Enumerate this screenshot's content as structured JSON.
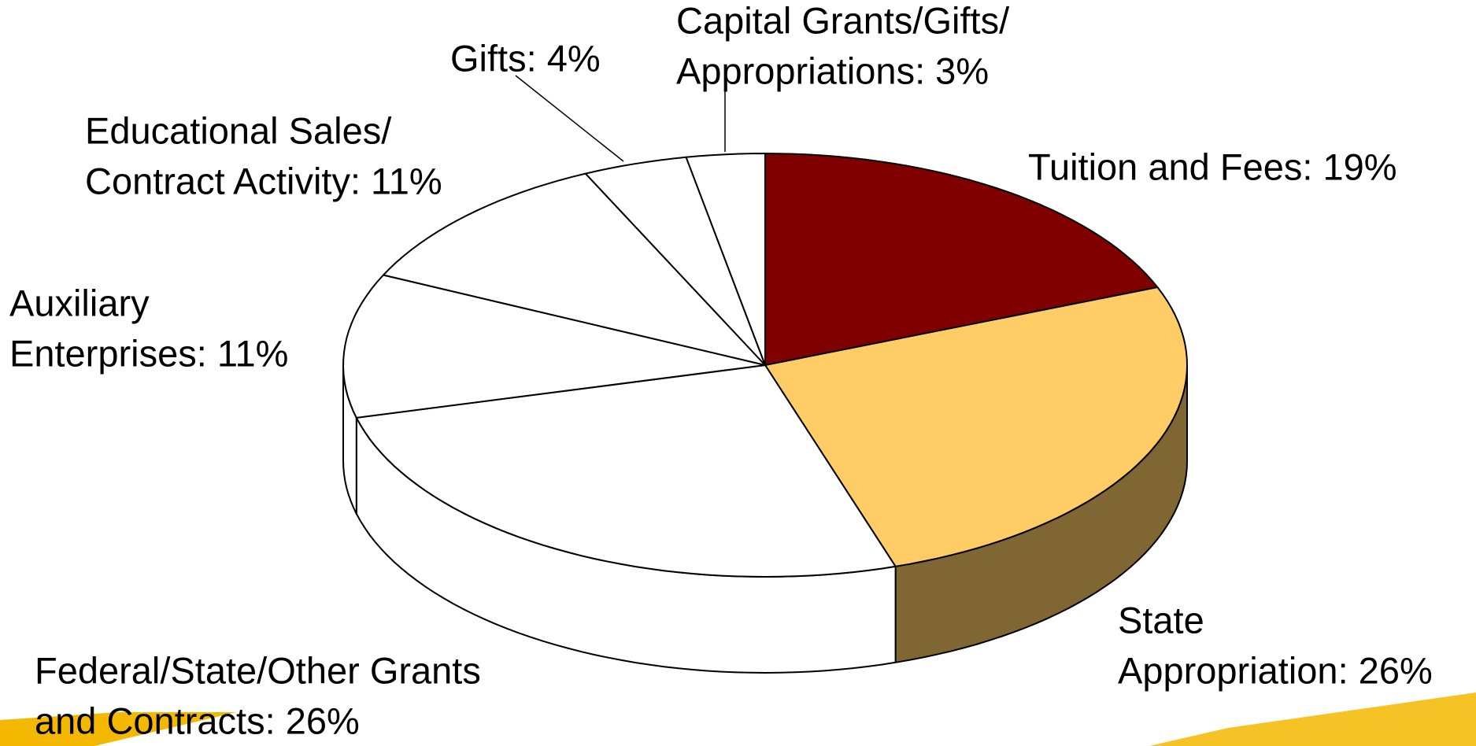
{
  "chart_data": {
    "type": "pie3d",
    "labels": [
      [
        "Tuition and Fees: 19%"
      ],
      [
        "State",
        "Appropriation: 26%"
      ],
      [
        "Federal/State/Other Grants",
        "and Contracts: 26%"
      ],
      [
        "Auxiliary",
        "Enterprises: 11%"
      ],
      [
        "Educational Sales/",
        "Contract Activity: 11%"
      ],
      [
        "Gifts: 4%"
      ],
      [
        "Capital Grants/Gifts/",
        "Appropriations: 3%"
      ]
    ],
    "values": [
      19,
      26,
      26,
      11,
      11,
      4,
      3
    ],
    "colors": [
      "#800000",
      "#ffcc66",
      "#ffffff",
      "#ffffff",
      "#ffffff",
      "#ffffff",
      "#ffffff"
    ],
    "side_colors": [
      "#400000",
      "#806633",
      "#ffffff",
      "#ffffff",
      "#ffffff",
      "#ffffff",
      "#ffffff"
    ]
  }
}
